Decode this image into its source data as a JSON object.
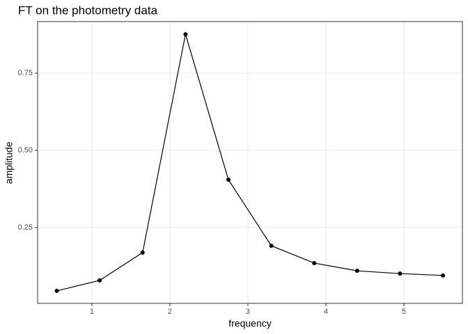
{
  "chart_data": {
    "type": "line",
    "title": "FT on the photometry data",
    "x_label": "frequency",
    "y_label": "amplitude",
    "x": [
      0.55,
      1.1,
      1.65,
      2.2,
      2.75,
      3.3,
      3.85,
      4.4,
      4.95,
      5.5
    ],
    "series": [
      {
        "color": "#000000",
        "values": [
          0.045,
          0.079,
          0.169,
          0.876,
          0.405,
          0.191,
          0.135,
          0.11,
          0.101,
          0.095
        ]
      }
    ],
    "xlim": [
      0.304,
      5.75
    ],
    "ylim": [
      0.0045,
      0.917
    ],
    "xticks": [
      1,
      2,
      3,
      4,
      5
    ],
    "yticks": [
      {
        "value": 0.25,
        "label": "0.25"
      },
      {
        "value": 0.5,
        "label": "0.50"
      },
      {
        "value": 0.75,
        "label": "0.75"
      }
    ],
    "grid": true,
    "markers": true
  }
}
